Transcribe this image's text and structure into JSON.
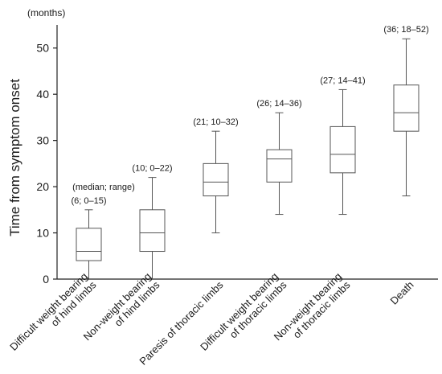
{
  "chart_data": {
    "type": "boxplot",
    "ylabel": "Time from symptom onset",
    "yunit": "(months)",
    "ylim": [
      0,
      55
    ],
    "yticks": [
      0,
      10,
      20,
      30,
      40,
      50
    ],
    "grid": false,
    "categories": [
      [
        "Difficult weight bearing",
        "of hind limbs"
      ],
      [
        "Non-weight bearing",
        "of hind limbs"
      ],
      [
        "Paresis of thoracic limbs"
      ],
      [
        "Difficult weight bearing",
        "of thoracic limbs"
      ],
      [
        "Non-weight bearing",
        "of thoracic limbs"
      ],
      [
        "Death"
      ]
    ],
    "boxes": [
      {
        "min": 0,
        "q1": 4,
        "median": 6,
        "q3": 11,
        "max": 15,
        "label": "(6; 0–15)"
      },
      {
        "min": 0,
        "q1": 6,
        "median": 10,
        "q3": 15,
        "max": 22,
        "label": "(10; 0–22)"
      },
      {
        "min": 10,
        "q1": 18,
        "median": 21,
        "q3": 25,
        "max": 32,
        "label": "(21; 10–32)"
      },
      {
        "min": 14,
        "q1": 21,
        "median": 26,
        "q3": 28,
        "max": 36,
        "label": "(26; 14–36)"
      },
      {
        "min": 14,
        "q1": 23,
        "median": 27,
        "q3": 33,
        "max": 41,
        "label": "(27; 14–41)"
      },
      {
        "min": 18,
        "q1": 32,
        "median": 36,
        "q3": 42,
        "max": 52,
        "label": "(36; 18–52)"
      }
    ],
    "annotation": "(median; range)"
  }
}
